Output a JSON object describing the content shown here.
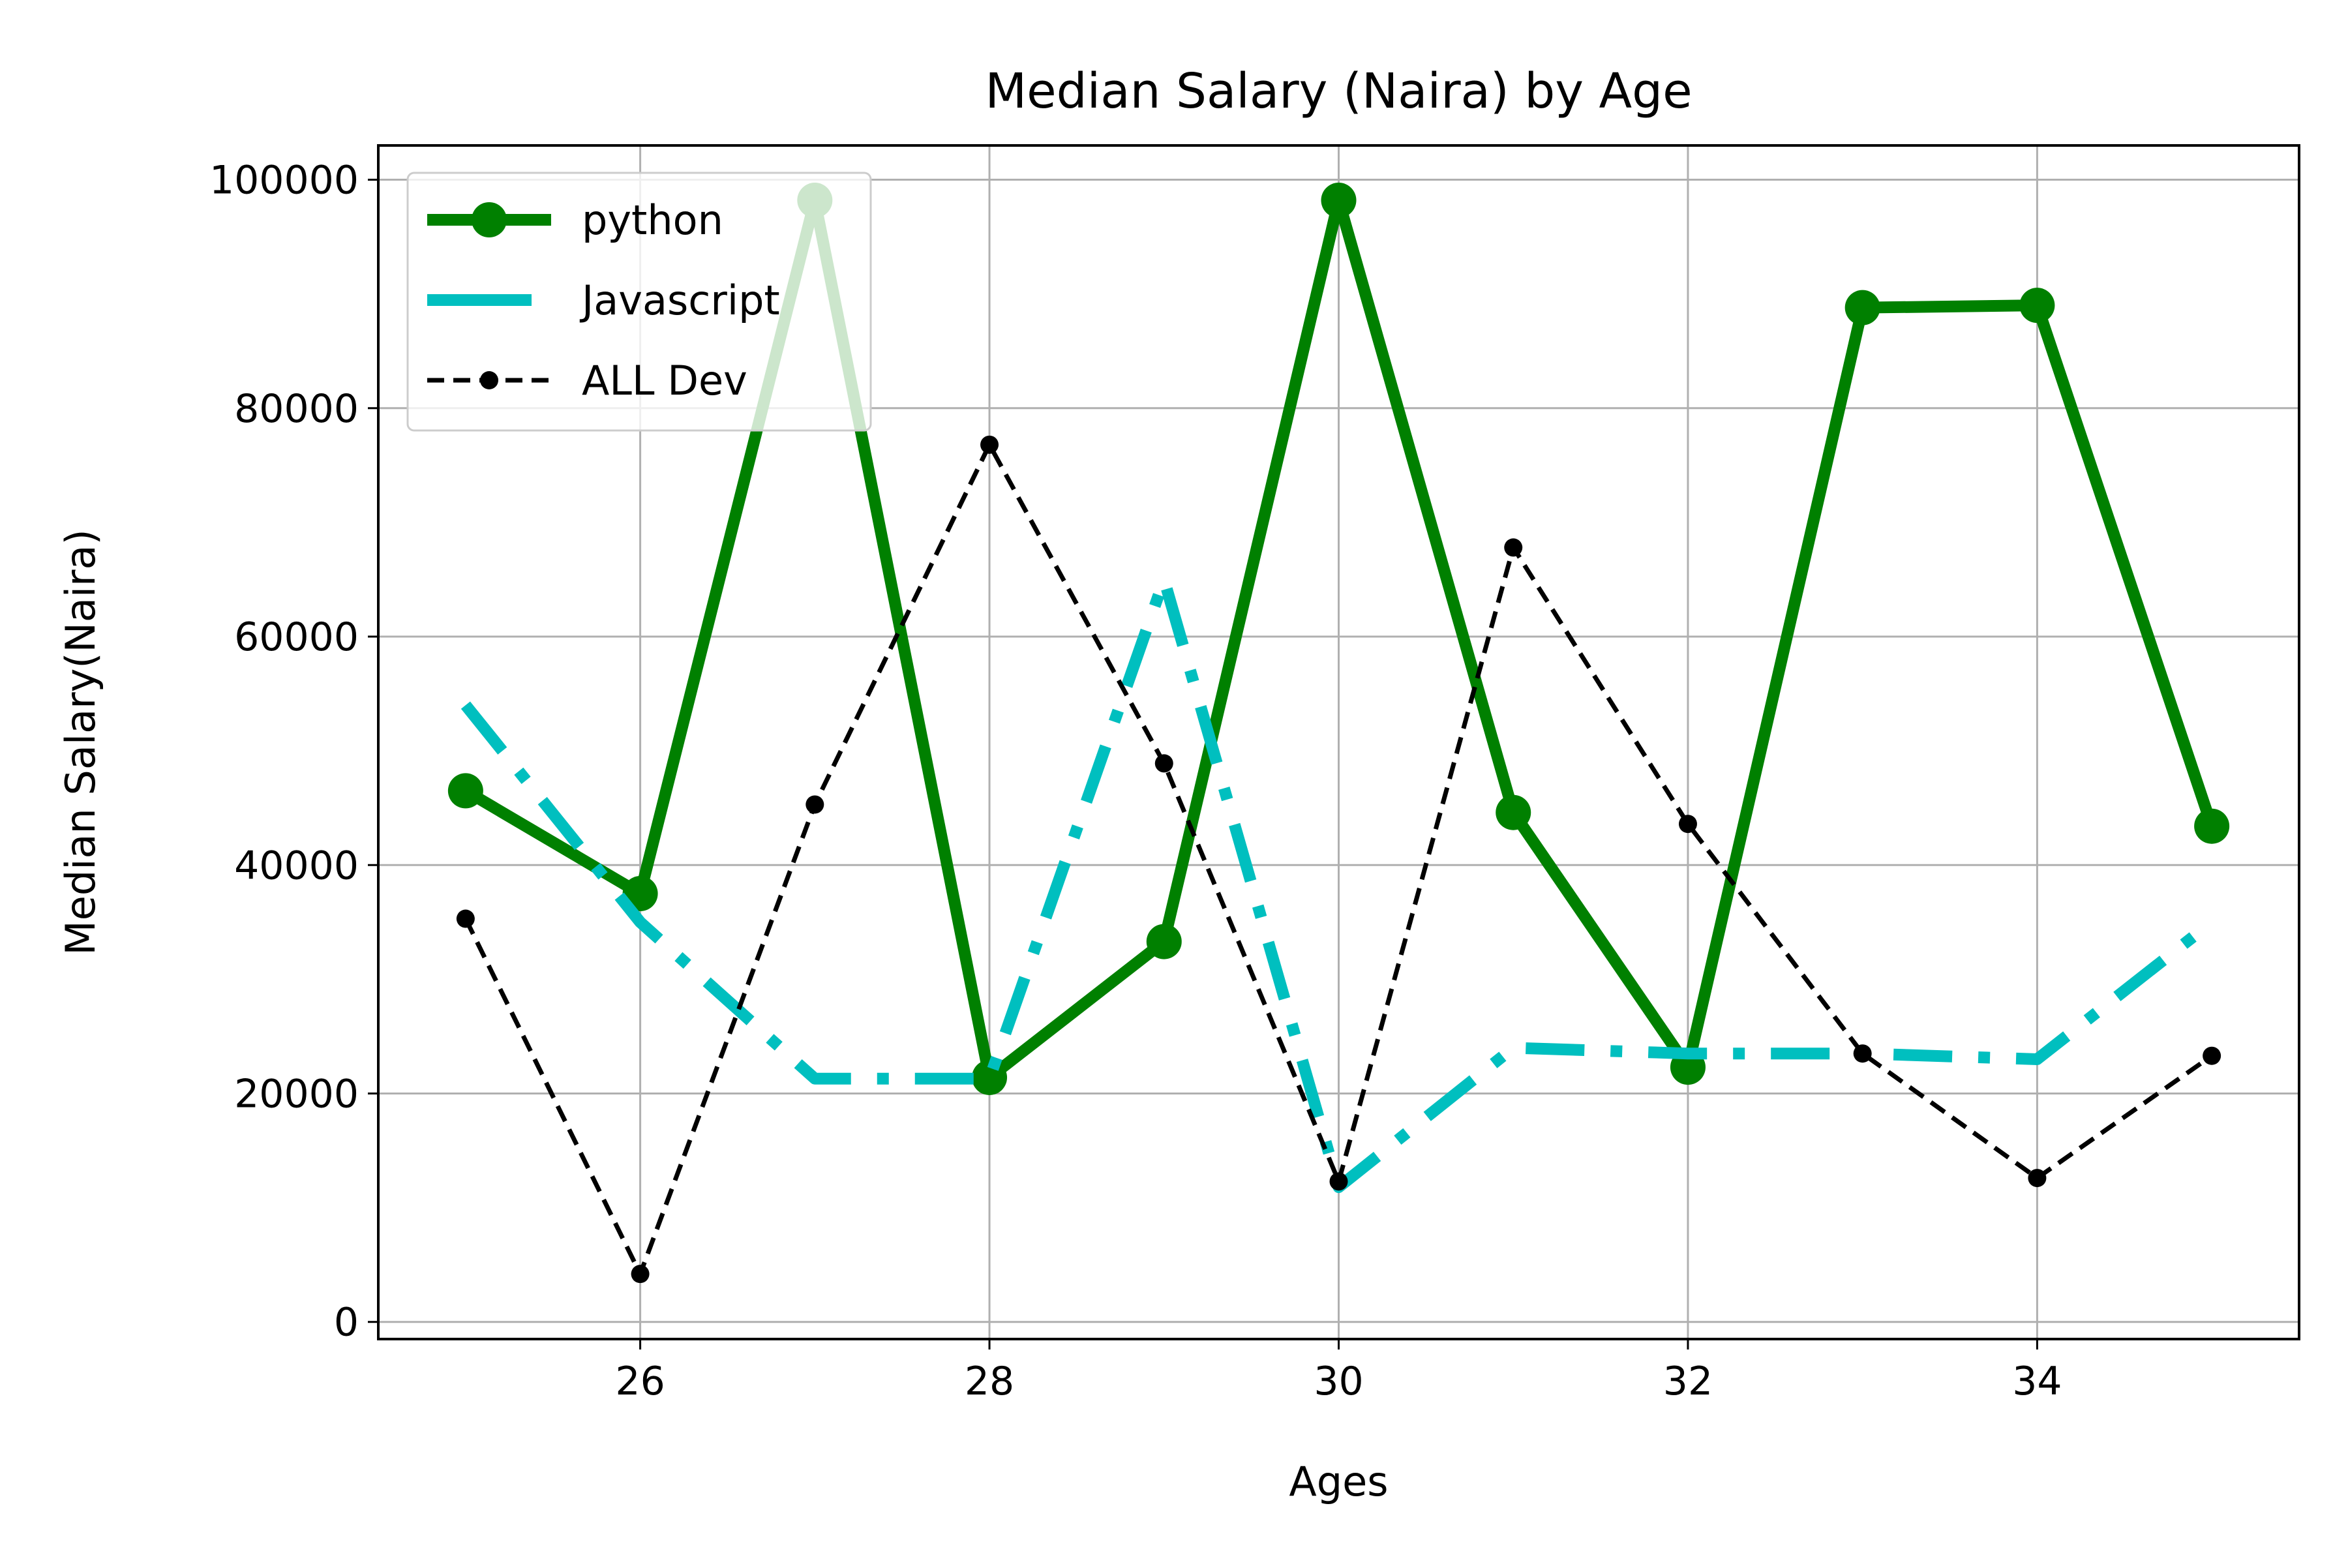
{
  "chart_data": {
    "type": "line",
    "title": "Median Salary (Naira) by Age",
    "xlabel": "Ages",
    "ylabel": "Median Salary(Naira)",
    "xlim": [
      24.5,
      35.5
    ],
    "ylim": [
      -1500,
      103000
    ],
    "x_ticks": [
      26,
      28,
      30,
      32,
      34
    ],
    "y_ticks": [
      0,
      20000,
      40000,
      60000,
      80000,
      100000
    ],
    "grid": true,
    "legend_position": "top-left",
    "x": [
      25,
      26,
      27,
      28,
      29,
      30,
      31,
      32,
      33,
      34,
      35
    ],
    "series": [
      {
        "name": "python",
        "color": "#008000",
        "line_style": "solid",
        "marker": "circle",
        "values": [
          46500,
          37500,
          98200,
          21400,
          33300,
          98200,
          44600,
          22300,
          88800,
          89000,
          43400
        ]
      },
      {
        "name": "Javascript",
        "color": "#00bfbf",
        "line_style": "dash-dot",
        "marker": "none",
        "values": [
          54000,
          35000,
          21300,
          21300,
          65000,
          11800,
          24000,
          23500,
          23500,
          23000,
          35000
        ]
      },
      {
        "name": "ALL Dev",
        "color": "#000000",
        "line_style": "dashed",
        "marker": "dot",
        "values": [
          35300,
          4200,
          45300,
          76800,
          48900,
          12300,
          67800,
          43600,
          23500,
          12600,
          23300
        ]
      }
    ]
  }
}
